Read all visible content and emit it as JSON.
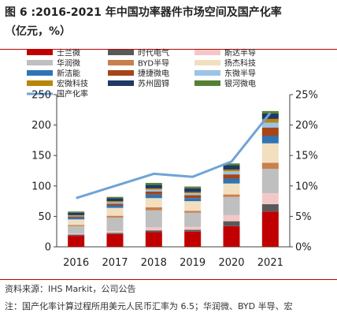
{
  "title": "图 6 :2016-2021 年中国功率器件市场空间及国产化率",
  "subtitle": "（亿元，%）",
  "source": "资料来源：IHS Markit，公司公告",
  "note": "注：国产化率计算过程所用美元人民币汇率为 6.5；华润微、BYD 半导、宏",
  "chart_data": {
    "type": "bar",
    "stacked": true,
    "categories": [
      "2016",
      "2017",
      "2018",
      "2019",
      "2020",
      "2021"
    ],
    "ylim": [
      0,
      250
    ],
    "yticks": [
      "0",
      "50",
      "100",
      "150",
      "200",
      "250"
    ],
    "y2lim": [
      0,
      25
    ],
    "y2ticks": [
      "0%",
      "5%",
      "10%",
      "15%",
      "20%",
      "25%"
    ],
    "legend_position": "top",
    "series": [
      {
        "name": "士兰微",
        "color": "#c00000",
        "values": [
          18,
          21,
          24,
          25,
          34,
          58
        ]
      },
      {
        "name": "时代电气",
        "color": "#595959",
        "values": [
          2,
          2,
          3,
          3,
          8,
          12
        ]
      },
      {
        "name": "斯达半导",
        "color": "#f4c7c7",
        "values": [
          2,
          3,
          5,
          5,
          10,
          18
        ]
      },
      {
        "name": "华润微",
        "color": "#bfbfbf",
        "values": [
          12,
          22,
          28,
          23,
          30,
          40
        ]
      },
      {
        "name": "BYD半导",
        "color": "#c8804c",
        "values": [
          2,
          3,
          5,
          3,
          4,
          10
        ]
      },
      {
        "name": "扬杰科技",
        "color": "#f2dfc0",
        "values": [
          9,
          13,
          15,
          16,
          18,
          32
        ]
      },
      {
        "name": "新洁能",
        "color": "#2e75b6",
        "values": [
          3,
          4,
          6,
          5,
          8,
          12
        ]
      },
      {
        "name": "捷捷微电",
        "color": "#a5461a",
        "values": [
          2,
          3,
          5,
          5,
          7,
          14
        ]
      },
      {
        "name": "东微半导",
        "color": "#9dc3e6",
        "values": [
          1,
          2,
          3,
          3,
          5,
          8
        ]
      },
      {
        "name": "宏微科技",
        "color": "#b8860b",
        "values": [
          1,
          2,
          2,
          2,
          3,
          6
        ]
      },
      {
        "name": "苏州固锝",
        "color": "#1f3864",
        "values": [
          4,
          5,
          6,
          6,
          7,
          9
        ]
      },
      {
        "name": "银河微电",
        "color": "#548235",
        "values": [
          2,
          2,
          3,
          3,
          3,
          4
        ]
      }
    ],
    "line": {
      "name": "国产化率",
      "color": "#6fa3d6",
      "values": [
        8,
        10,
        12,
        11.5,
        14,
        22
      ]
    }
  }
}
